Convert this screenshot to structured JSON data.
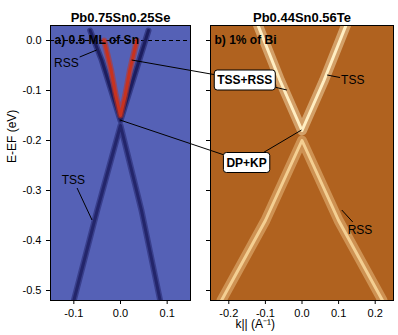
{
  "chart_data": [
    {
      "type": "line",
      "title": "Pb0.75Sn0.25Se",
      "subtitle": "a) 0.5 ML of Sn",
      "y_label": "E-EF (eV)",
      "xlim": [
        -0.15,
        0.15
      ],
      "xticks": [
        -0.1,
        {
          "value": 0,
          "label": "0.0"
        },
        0.1
      ],
      "ylim": [
        -0.52,
        0.03
      ],
      "yticks": [
        {
          "value": 0,
          "label": "0.0"
        },
        -0.1,
        -0.2,
        -0.3,
        -0.4,
        -0.5
      ],
      "reference_lines": [
        {
          "y": 0,
          "line_style": "dashed"
        }
      ],
      "series": [
        {
          "name": "RSS",
          "color": "#1c1d5e",
          "x": [
            -0.065,
            -0.04,
            -0.02,
            0,
            0.02,
            0.04,
            0.06
          ],
          "values": [
            0.02,
            -0.04,
            -0.1,
            -0.16,
            -0.1,
            -0.04,
            0.02
          ]
        },
        {
          "name": "TSS+RSS",
          "color": "#c8321e",
          "x": [
            -0.035,
            -0.02,
            -0.01,
            0,
            0.01,
            0.02,
            0.035
          ],
          "values": [
            0.0,
            -0.06,
            -0.11,
            -0.15,
            -0.11,
            -0.06,
            0.0
          ]
        },
        {
          "name": "TSS",
          "color": "#23256a",
          "x": [
            -0.1,
            -0.05,
            0,
            0.045,
            0.085
          ],
          "values": [
            -0.52,
            -0.34,
            -0.17,
            -0.34,
            -0.52
          ]
        }
      ],
      "annotations": [
        {
          "text": "RSS",
          "x": -0.115,
          "y": -0.045,
          "points": [
            {
              "x": -0.05,
              "y": -0.02
            }
          ]
        },
        {
          "text": "TSS",
          "x": -0.1,
          "y": -0.28,
          "points": [
            {
              "x": -0.06,
              "y": -0.36
            }
          ]
        }
      ]
    },
    {
      "type": "line",
      "title": "Pb0.44Sn0.56Te",
      "subtitle": "b) 1% of Bi",
      "x_label": "k|| (A⁻¹)",
      "tick_labels": "x",
      "xlim": [
        -0.25,
        0.25
      ],
      "xticks": [
        -0.2,
        -0.1,
        {
          "value": 0,
          "label": "0.0"
        },
        0.1,
        0.2
      ],
      "ylim": [
        -0.52,
        0.03
      ],
      "yticks": [
        {
          "value": 0,
          "label": "0.0"
        },
        -0.1,
        -0.2,
        -0.3,
        -0.4,
        -0.5
      ],
      "series": [
        {
          "name": "TSS",
          "color": "#ffeec2",
          "x": [
            -0.12,
            -0.06,
            0,
            0.06,
            0.12
          ],
          "values": [
            0.03,
            -0.08,
            -0.18,
            -0.08,
            0.03
          ]
        },
        {
          "name": "RSS",
          "color": "#f4cf92",
          "x": [
            -0.22,
            -0.1,
            0,
            0.1,
            0.22
          ],
          "values": [
            -0.52,
            -0.36,
            -0.2,
            -0.36,
            -0.52
          ]
        }
      ],
      "annotations": [
        {
          "text": "TSS",
          "x": 0.14,
          "y": -0.08,
          "points": [
            {
              "x": 0.07,
              "y": -0.07
            }
          ]
        },
        {
          "text": "RSS",
          "x": 0.16,
          "y": -0.38,
          "points": [
            {
              "x": 0.11,
              "y": -0.34
            }
          ]
        }
      ]
    }
  ],
  "callouts": [
    {
      "text": "TSS+RSS",
      "chart": 1,
      "x": -0.155,
      "y": -0.08,
      "points": [
        {
          "chart": 0,
          "x": 0.025,
          "y": -0.04
        },
        {
          "chart": 1,
          "x": -0.04,
          "y": -0.1
        }
      ]
    },
    {
      "text": "DP+KP",
      "chart": 1,
      "x": -0.15,
      "y": -0.245,
      "points": [
        {
          "chart": 0,
          "x": 0,
          "y": -0.16
        },
        {
          "chart": 1,
          "x": 0,
          "y": -0.18
        }
      ]
    }
  ]
}
